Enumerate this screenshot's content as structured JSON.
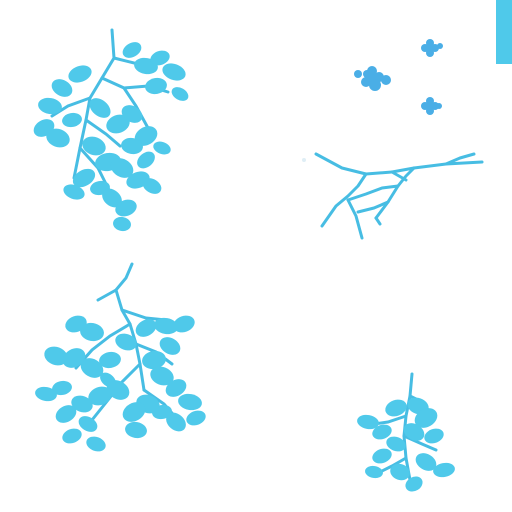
{
  "sheet": {
    "background": "#ffffff",
    "fill_color": "#4fc9ea",
    "line_color": "#47bde3",
    "flower_color": "#4aaee6",
    "indicator_color": "#4fc9ea"
  },
  "sprites": [
    {
      "name": "leafy-branch-top-left",
      "icon": "leafy-branch-icon"
    },
    {
      "name": "blossom-cluster-top-right",
      "icon": "blossom-icon"
    },
    {
      "name": "bare-twig-right",
      "icon": "twig-icon"
    },
    {
      "name": "leafy-branch-bottom-left",
      "icon": "leafy-branch-icon"
    },
    {
      "name": "small-leaf-sprig-bottom-right",
      "icon": "leaf-sprig-icon"
    }
  ]
}
